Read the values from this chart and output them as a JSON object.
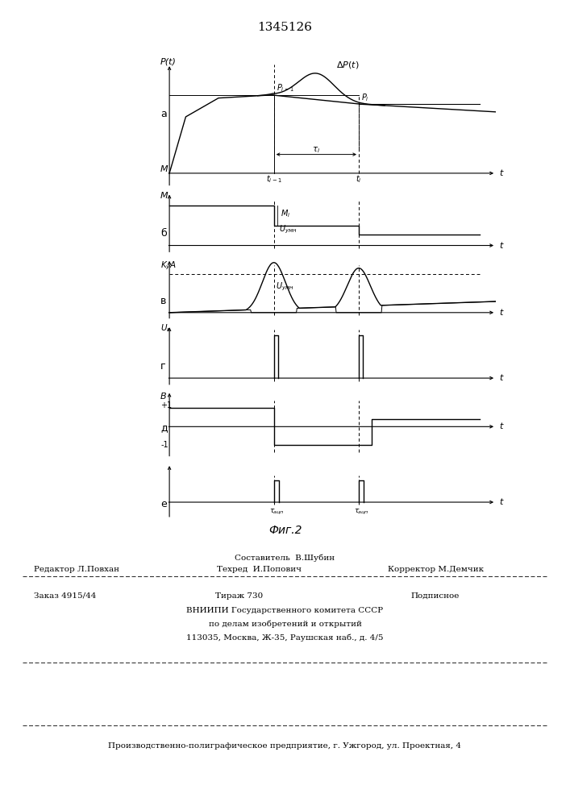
{
  "title": "1345126",
  "bg_color": "#ffffff",
  "line_color": "#000000",
  "x_max": 10.0,
  "t_i1": 3.2,
  "t_i": 5.8,
  "footer_composer": "Составитель  В.Шубин",
  "footer_editor": "Редактор Л.Повхан",
  "footer_techred": "Техред  И.Попович",
  "footer_corrector": "Корректор М.Демчик",
  "footer_order": "Заказ 4915/44",
  "footer_tirazh": "Тираж 730",
  "footer_podp": "Подписное",
  "footer_vniip1": "ВНИИПИ Государственного комитета СССР",
  "footer_vniip2": "по делам изобретений и открытий",
  "footer_addr": "113035, Москва, Ж-35, Раушская наб., д. 4/5",
  "footer_prod": "Производственно-полиграфическое предприятие, г. Ужгород, ул. Проектная, 4",
  "fig_caption": "Фиг.2"
}
